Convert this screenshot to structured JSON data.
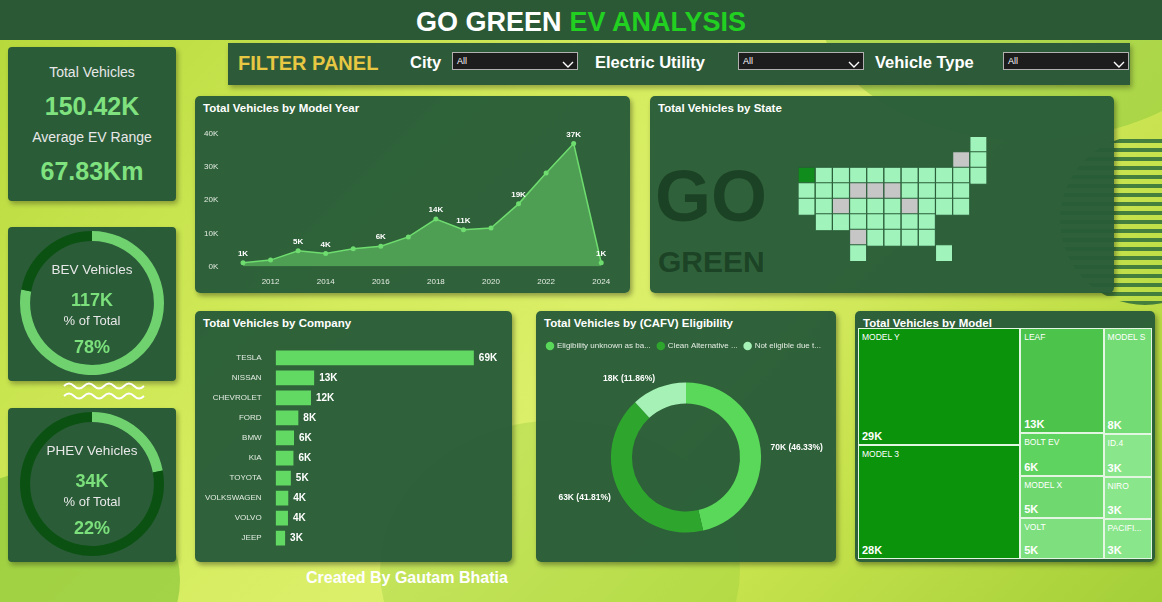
{
  "header": {
    "title": "GO GREEN",
    "title_accent": "EV ANALYSIS"
  },
  "filter_panel": {
    "title": "FILTER PANEL",
    "filters": [
      {
        "label": "City",
        "value": "All"
      },
      {
        "label": "Electric Utility",
        "value": "All"
      },
      {
        "label": "Vehicle Type",
        "value": "All"
      }
    ]
  },
  "kpi_card": {
    "items": [
      {
        "label": "Total Vehicles",
        "value": "150.42K"
      },
      {
        "label": "Average EV Range",
        "value": "67.83Km"
      }
    ]
  },
  "share_cards": [
    {
      "title": "BEV Vehicles",
      "value": "117K",
      "share_title": "% of Total",
      "share": 78,
      "share_label": "78%",
      "color": "#6fd26f"
    },
    {
      "title": "PHEV Vehicles",
      "value": "34K",
      "share_title": "% of Total",
      "share": 22,
      "share_label": "22%",
      "color": "#6fd26f"
    }
  ],
  "watermark": [
    "GO",
    "GREEN"
  ],
  "footer": "Created By Gautam Bhatia",
  "chart_data": [
    {
      "type": "area",
      "title": "Total Vehicles by Model Year",
      "categories": [
        null,
        "2012",
        null,
        "2014",
        null,
        "2016",
        null,
        "2018",
        null,
        "2020",
        null,
        "2022",
        null,
        "2024"
      ],
      "values": [
        1100,
        1900,
        4700,
        3900,
        5300,
        6100,
        8900,
        14300,
        11100,
        11600,
        18900,
        28200,
        37100,
        1100
      ],
      "value_labels": [
        "1K",
        null,
        "5K",
        "4K",
        null,
        "6K",
        null,
        "14K",
        "11K",
        null,
        "19K",
        null,
        "37K",
        "1K"
      ],
      "color": "#6edc6e",
      "ylim": [
        0,
        40000
      ],
      "yticks": [
        {
          "value": 0,
          "label": "0K"
        },
        {
          "value": 10000,
          "label": "10K"
        },
        {
          "value": 20000,
          "label": "20K"
        },
        {
          "value": 30000,
          "label": "30K"
        },
        {
          "value": 40000,
          "label": "40K"
        }
      ],
      "grid": false,
      "data_labels": true
    },
    {
      "type": "map",
      "title": "Total Vehicles by State",
      "colors": [
        "#9ff3bb",
        "#c6c6c6",
        "#9ff3bb",
        "#0f8c1c",
        "#9ff3bb",
        "#9ff3bb",
        "#9ff3bb",
        "#9ff3bb",
        "#9ff3bb",
        "#9ff3bb",
        "#9ff3bb",
        "#9ff3bb",
        "#9ff3bb",
        "#9ff3bb",
        "#9ff3bb",
        "#9ff3bb",
        "#9ff3bb",
        "#c6c6c6",
        "#c6c6c6",
        "#c6c6c6",
        "#9ff3bb",
        "#9ff3bb",
        "#9ff3bb",
        "#9ff3bb",
        "#9ff3bb",
        "#9ff3bb",
        "#c6c6c6",
        "#9ff3bb",
        "#9ff3bb",
        "#9ff3bb",
        "#c6c6c6",
        "#9ff3bb",
        "#9ff3bb",
        "#9ff3bb",
        "#9ff3bb",
        "#9ff3bb",
        "#9ff3bb",
        "#9ff3bb",
        "#9ff3bb",
        "#9ff3bb",
        "#9ff3bb",
        "#c6c6c6",
        "#9ff3bb",
        "#9ff3bb",
        "#9ff3bb",
        "#9ff3bb",
        "#9ff3bb",
        "#9ff3bb"
      ]
    },
    {
      "type": "bar",
      "orientation": "horizontal",
      "title": "Total Vehicles by Company",
      "categories": [
        "TESLA",
        "NISSAN",
        "CHEVROLET",
        "FORD",
        "BMW",
        "KIA",
        "TOYOTA",
        "VOLKSWAGEN",
        "VOLVO",
        "JEEP"
      ],
      "values": [
        68.9,
        13.4,
        12.3,
        7.9,
        6.4,
        6.2,
        5.3,
        4.4,
        4.3,
        3.3
      ],
      "value_labels": [
        "69K",
        "13K",
        "12K",
        "8K",
        "6K",
        "6K",
        "5K",
        "4K",
        "4K",
        "3K"
      ],
      "color": "#62d962",
      "xlim": [
        0,
        70
      ],
      "grid": false,
      "data_labels": true,
      "tick_labels": "y"
    },
    {
      "type": "doughnut",
      "title": "Total Vehicles by (CAFV) Eligibility",
      "categories": [
        "Eligibility unknown as ba...",
        "Clean Alternative ...",
        "Not eligible due t..."
      ],
      "values": [
        69.69,
        62.89,
        17.84
      ],
      "value_labels": [
        "70K (46.33%)",
        "63K (41.81%)",
        "18K (11.86%)"
      ],
      "colors": [
        "#5ad85a",
        "#2ea62e",
        "#a6f2b6"
      ],
      "legend": "top",
      "data_labels": true
    },
    {
      "type": "treemap",
      "title": "Total Vehicles by Model",
      "categories": [
        "MODEL Y",
        "MODEL 3",
        "LEAF",
        "MODEL S",
        "BOLT EV",
        "MODEL X",
        "VOLT",
        "ID.4",
        "NIRO",
        "PACIFI..."
      ],
      "values": [
        29.2,
        28.4,
        13.4,
        7.9,
        5.6,
        5.4,
        5.2,
        3.2,
        3.1,
        3.0
      ],
      "value_labels": [
        "29K",
        "28K",
        "13K",
        "8K",
        "6K",
        "5K",
        "5K",
        "3K",
        "3K",
        "3K"
      ],
      "colors": [
        "#0b930b",
        "#0b930b",
        "#4cc44c",
        "#74dc74",
        "#5fd35f",
        "#6fd96f",
        "#7ddf7d",
        "#8ae68a",
        "#8ae68a",
        "#8ae68a"
      ],
      "data_labels": true
    }
  ]
}
